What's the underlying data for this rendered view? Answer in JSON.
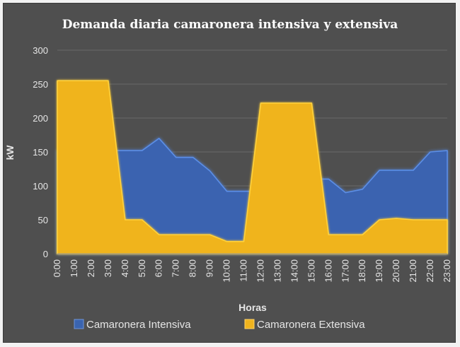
{
  "chart_data": {
    "type": "area",
    "title": "Demanda diaria camaronera intensiva y extensiva",
    "xlabel": "Horas",
    "ylabel": "kW",
    "ylim": [
      0,
      300
    ],
    "yticks": [
      "0",
      "50",
      "100",
      "150",
      "200",
      "250",
      "300"
    ],
    "grid": true,
    "legend": "bottom",
    "categories": [
      "0:00",
      "1:00",
      "2:00",
      "3:00",
      "4:00",
      "5:00",
      "6:00",
      "7:00",
      "8:00",
      "9:00",
      "10:00",
      "11:00",
      "12:00",
      "13:00",
      "14:00",
      "15:00",
      "16:00",
      "17:00",
      "18:00",
      "19:00",
      "20:00",
      "21:00",
      "22:00",
      "23:00"
    ],
    "series": [
      {
        "name": "Camaronera Intensiva",
        "color": "#3a64b0",
        "values": [
          152,
          152,
          152,
          152,
          152,
          152,
          170,
          142,
          142,
          122,
          92,
          92,
          92,
          92,
          110,
          110,
          110,
          90,
          95,
          123,
          123,
          123,
          150,
          152
        ]
      },
      {
        "name": "Camaronera Extensiva",
        "color": "#f0b41e",
        "values": [
          255,
          255,
          255,
          255,
          50,
          50,
          28,
          28,
          28,
          28,
          18,
          18,
          222,
          222,
          222,
          222,
          28,
          28,
          28,
          50,
          52,
          50,
          50,
          50
        ]
      }
    ]
  }
}
